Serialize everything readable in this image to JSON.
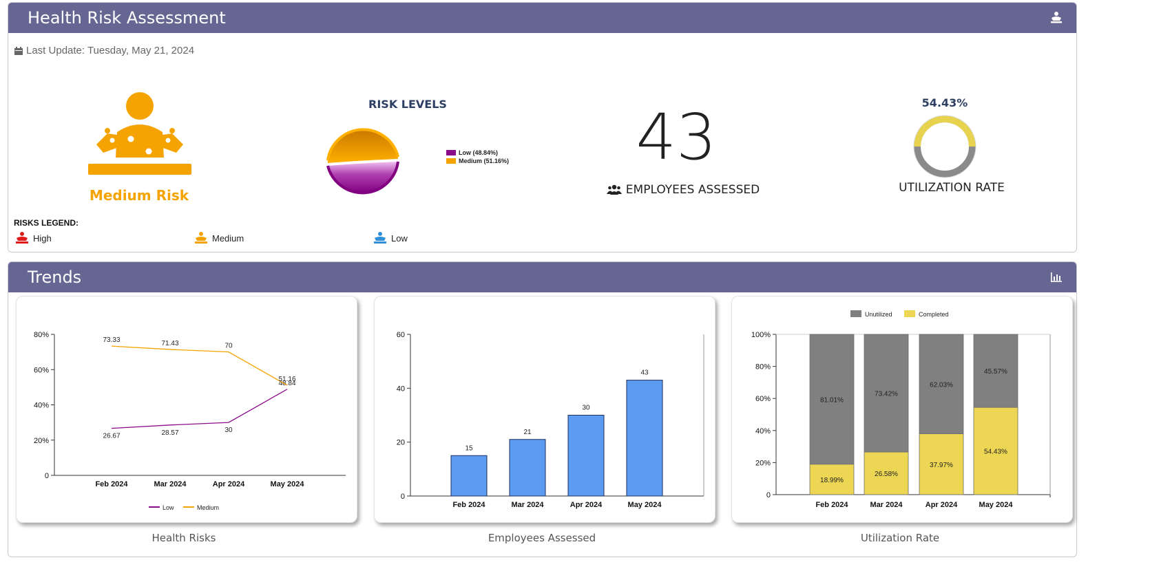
{
  "hra": {
    "title": "Health Risk Assessment",
    "last_update": "Last Update: Tuesday, May 21, 2024",
    "risk_label": "Medium Risk",
    "risk_levels_title": "RISK LEVELS",
    "pie_legend": [
      {
        "label": "Low (48.84%)",
        "color": "#8a0c8a"
      },
      {
        "label": "Medium (51.16%)",
        "color": "#f5a300"
      }
    ],
    "employees_count": "43",
    "employees_label": "EMPLOYEES ASSESSED",
    "utilization_pct": "54.43%",
    "utilization_label": "UTILIZATION RATE",
    "risks_legend_title": "RISKS LEGEND:",
    "risks_legend": [
      {
        "label": "High",
        "color": "#e01b1b"
      },
      {
        "label": "Medium",
        "color": "#f5a300"
      },
      {
        "label": "Low",
        "color": "#2f8fd8"
      }
    ]
  },
  "trends": {
    "title": "Trends",
    "captions": [
      "Health Risks",
      "Employees Assessed",
      "Utilization Rate"
    ]
  },
  "chart_data": [
    {
      "type": "line",
      "categories": [
        "Feb 2024",
        "Mar 2024",
        "Apr 2024",
        "May 2024"
      ],
      "series": [
        {
          "name": "Low",
          "values": [
            26.67,
            28.57,
            30,
            48.84
          ],
          "labels": [
            "26.67",
            "28.57",
            "30",
            "48.84"
          ],
          "color": "#8a0c8a"
        },
        {
          "name": "Medium",
          "values": [
            73.33,
            71.43,
            70,
            51.16
          ],
          "labels": [
            "73.33",
            "71.43",
            "70",
            "51.16"
          ],
          "color": "#f5a300"
        }
      ],
      "ylim": [
        0,
        80
      ],
      "yticks": [
        "0",
        "20%",
        "40%",
        "60%",
        "80%"
      ],
      "legend": "bottom"
    },
    {
      "type": "bar",
      "categories": [
        "Feb 2024",
        "Mar 2024",
        "Apr 2024",
        "May 2024"
      ],
      "values": [
        15,
        21,
        30,
        43
      ],
      "ylim": [
        0,
        60
      ],
      "yticks": [
        "0",
        "20",
        "40",
        "60"
      ],
      "color": "#5b9bf2"
    },
    {
      "type": "bar",
      "stacked": true,
      "categories": [
        "Feb 2024",
        "Mar 2024",
        "Apr 2024",
        "May 2024"
      ],
      "series": [
        {
          "name": "Completed",
          "values": [
            18.99,
            26.58,
            37.97,
            54.43
          ],
          "labels": [
            "18.99%",
            "26.58%",
            "37.97%",
            "54.43%"
          ],
          "color": "#ecd653"
        },
        {
          "name": "Unutilized",
          "values": [
            81.01,
            73.42,
            62.03,
            45.57
          ],
          "labels": [
            "81.01%",
            "73.42%",
            "62.03%",
            "45.57%"
          ],
          "color": "#808080"
        }
      ],
      "legend_order": [
        "Unutilized",
        "Completed"
      ],
      "ylim": [
        0,
        100
      ],
      "yticks": [
        "0",
        "20%",
        "40%",
        "60%",
        "80%",
        "100%"
      ],
      "legend": "top"
    }
  ]
}
